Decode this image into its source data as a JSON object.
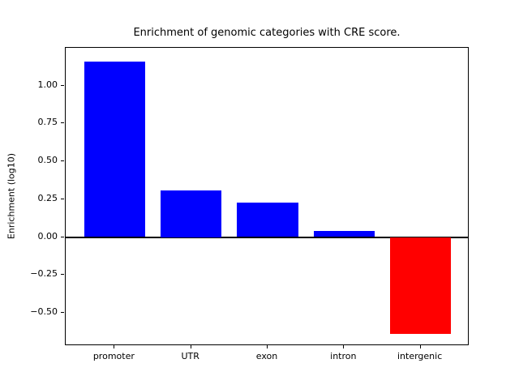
{
  "chart_data": {
    "type": "bar",
    "title": "Enrichment of genomic categories with CRE score.",
    "xlabel": "",
    "ylabel": "Enrichment (log10)",
    "categories": [
      "promoter",
      "UTR",
      "exon",
      "intron",
      "intergenic"
    ],
    "values": [
      1.16,
      0.31,
      0.23,
      0.04,
      -0.64
    ],
    "bar_colors": [
      "#0000ff",
      "#0000ff",
      "#0000ff",
      "#0000ff",
      "#ff0000"
    ],
    "positive_color": "#0000ff",
    "negative_color": "#ff0000",
    "ylim": [
      -0.72,
      1.25
    ],
    "yticks": {
      "values": [
        1.0,
        0.75,
        0.5,
        0.25,
        0.0,
        -0.25,
        -0.5
      ],
      "labels": [
        "1.00",
        "0.75",
        "0.50",
        "0.25",
        "0.00",
        "−0.25",
        "−0.50"
      ]
    },
    "zero_line": true,
    "grid": false,
    "legend": null,
    "bar_width_fraction": 0.8,
    "background_color": "#ffffff",
    "spine_color": "#000000"
  }
}
